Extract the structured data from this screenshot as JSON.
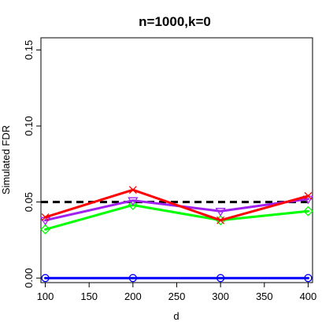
{
  "chart_data": {
    "type": "line",
    "title": "n=1000,k=0",
    "xlabel": "d",
    "ylabel": "Simulated FDR",
    "x": [
      100,
      200,
      300,
      400
    ],
    "xlim": [
      95,
      405
    ],
    "ylim": [
      -0.003,
      0.158
    ],
    "xticks": [
      100,
      150,
      200,
      250,
      300,
      350,
      400
    ],
    "yticks": [
      0.0,
      0.05,
      0.1,
      0.15
    ],
    "xtick_labels": [
      "100",
      "150",
      "200",
      "250",
      "300",
      "350",
      "400"
    ],
    "ytick_labels": [
      "0.00",
      "0.05",
      "0.10",
      "0.15"
    ],
    "grid": false,
    "reference_line": {
      "y": 0.05,
      "color": "#000000",
      "style": "dashed"
    },
    "series": [
      {
        "values": [
          0.0,
          0.0,
          0.0,
          0.0
        ],
        "color": "#0000ff",
        "marker": "circle"
      },
      {
        "values": [
          0.032,
          0.048,
          0.038,
          0.044
        ],
        "color": "#00ff00",
        "marker": "diamond"
      },
      {
        "values": [
          0.038,
          0.051,
          0.044,
          0.052
        ],
        "color": "#a020f0",
        "marker": "triangle-down"
      },
      {
        "values": [
          0.04,
          0.058,
          0.038,
          0.054
        ],
        "color": "#ff0000",
        "marker": "x"
      }
    ]
  }
}
